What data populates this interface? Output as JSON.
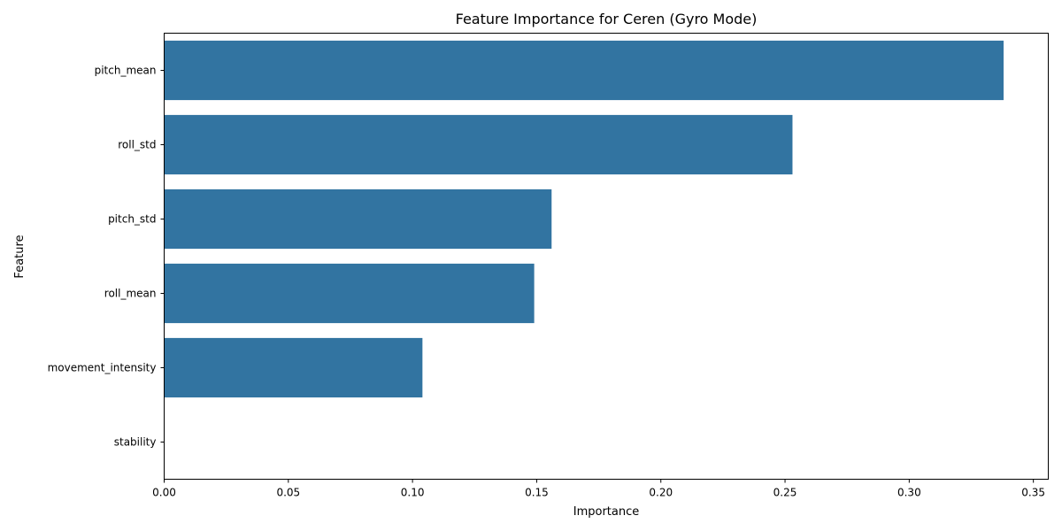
{
  "chart_data": {
    "type": "bar",
    "orientation": "horizontal",
    "title": "Feature Importance for Ceren (Gyro Mode)",
    "xlabel": "Importance",
    "ylabel": "Feature",
    "categories": [
      "pitch_mean",
      "roll_std",
      "pitch_std",
      "roll_mean",
      "movement_intensity",
      "stability"
    ],
    "values": [
      0.338,
      0.253,
      0.156,
      0.149,
      0.104,
      0.0
    ],
    "xlim": [
      0,
      0.356
    ],
    "xticks": [
      "0.00",
      "0.05",
      "0.10",
      "0.15",
      "0.20",
      "0.25",
      "0.30",
      "0.35"
    ],
    "grid": false,
    "bar_color": "#3274a1"
  }
}
